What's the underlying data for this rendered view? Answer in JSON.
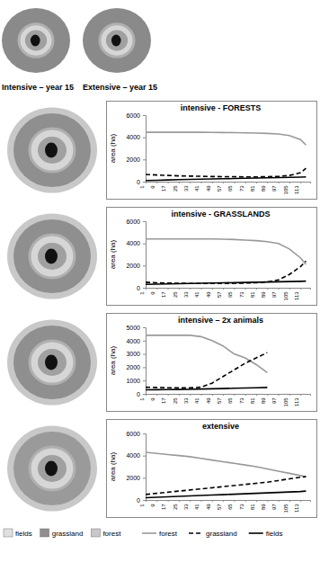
{
  "map_labels": [
    "Intensive – year 15",
    "Extensive – year 15"
  ],
  "map_legend": [
    "fields",
    "grassland",
    "forest"
  ],
  "chart_data": [
    {
      "type": "line",
      "title": "intensive - FORESTS",
      "y_label": "area (ha)",
      "x": [
        1,
        9,
        17,
        25,
        33,
        41,
        49,
        57,
        65,
        73,
        81,
        89,
        97,
        105,
        113,
        117
      ],
      "xlim": [
        1,
        120
      ],
      "xticks": [
        1,
        9,
        17,
        25,
        33,
        41,
        49,
        57,
        65,
        73,
        81,
        89,
        97,
        105,
        113
      ],
      "ylim": [
        0,
        6000
      ],
      "yticks": [
        0,
        2000,
        4000,
        6000
      ],
      "grid": false,
      "series": [
        {
          "name": "forest",
          "color": "#999999",
          "line_style": "solid",
          "values": [
            4450,
            4450,
            4450,
            4450,
            4450,
            4450,
            4440,
            4430,
            4420,
            4400,
            4380,
            4350,
            4300,
            4150,
            3800,
            3300
          ]
        },
        {
          "name": "grassland",
          "color": "#000000",
          "line_style": "dashed",
          "values": [
            650,
            600,
            560,
            520,
            500,
            480,
            460,
            450,
            440,
            430,
            430,
            440,
            470,
            560,
            800,
            1200
          ]
        },
        {
          "name": "fields",
          "color": "#000000",
          "line_style": "solid",
          "values": [
            100,
            120,
            150,
            180,
            200,
            220,
            240,
            260,
            280,
            300,
            320,
            340,
            360,
            380,
            400,
            420
          ]
        }
      ]
    },
    {
      "type": "line",
      "title": "intensive - GRASSLANDS",
      "y_label": "area (ha)",
      "x": [
        1,
        9,
        17,
        25,
        33,
        41,
        49,
        57,
        65,
        73,
        81,
        89,
        97,
        105,
        113,
        117
      ],
      "xlim": [
        1,
        120
      ],
      "xticks": [
        1,
        9,
        17,
        25,
        33,
        41,
        49,
        57,
        65,
        73,
        81,
        89,
        97,
        105,
        113
      ],
      "ylim": [
        0,
        6000
      ],
      "yticks": [
        0,
        2000,
        4000,
        6000
      ],
      "grid": false,
      "series": [
        {
          "name": "forest",
          "color": "#999999",
          "line_style": "solid",
          "values": [
            4400,
            4400,
            4400,
            4400,
            4400,
            4400,
            4400,
            4380,
            4350,
            4300,
            4250,
            4150,
            4000,
            3500,
            2700,
            2100
          ]
        },
        {
          "name": "grassland",
          "color": "#000000",
          "line_style": "dashed",
          "values": [
            500,
            450,
            420,
            400,
            390,
            380,
            380,
            390,
            400,
            420,
            450,
            520,
            700,
            1200,
            1900,
            2400
          ]
        },
        {
          "name": "fields",
          "color": "#000000",
          "line_style": "solid",
          "values": [
            300,
            320,
            340,
            360,
            380,
            400,
            420,
            440,
            460,
            480,
            500,
            520,
            540,
            560,
            580,
            600
          ]
        }
      ]
    },
    {
      "type": "line",
      "title": "intensive – 2x animals",
      "y_label": "area (ha)",
      "x": [
        1,
        9,
        17,
        25,
        33,
        41,
        49,
        57,
        65,
        73,
        81,
        89,
        97,
        105,
        113,
        117
      ],
      "xlim": [
        1,
        120
      ],
      "xticks": [
        1,
        9,
        17,
        25,
        33,
        41,
        49,
        57,
        65,
        73,
        81,
        89,
        97,
        105,
        113
      ],
      "ylim": [
        0,
        5000
      ],
      "yticks": [
        0,
        1000,
        2000,
        3000,
        4000,
        5000
      ],
      "grid": false,
      "series": [
        {
          "name": "forest",
          "color": "#999999",
          "line_style": "solid",
          "values": [
            4400,
            4400,
            4400,
            4400,
            4400,
            4300,
            4000,
            3600,
            3000,
            2700,
            2200,
            1600,
            null,
            null,
            null,
            null
          ]
        },
        {
          "name": "grassland",
          "color": "#000000",
          "line_style": "dashed",
          "values": [
            500,
            480,
            460,
            450,
            450,
            500,
            800,
            1300,
            1800,
            2300,
            2700,
            3100,
            null,
            null,
            null,
            null
          ]
        },
        {
          "name": "fields",
          "color": "#000000",
          "line_style": "solid",
          "values": [
            300,
            310,
            320,
            330,
            340,
            360,
            380,
            400,
            420,
            440,
            460,
            480,
            null,
            null,
            null,
            null
          ]
        }
      ]
    },
    {
      "type": "line",
      "title": "extensive",
      "y_label": "area (ha)",
      "x": [
        1,
        9,
        17,
        25,
        33,
        41,
        49,
        57,
        65,
        73,
        81,
        89,
        97,
        105,
        113,
        117
      ],
      "xlim": [
        1,
        120
      ],
      "xticks": [
        1,
        9,
        17,
        25,
        33,
        41,
        49,
        57,
        65,
        73,
        81,
        89,
        97,
        105,
        113
      ],
      "ylim": [
        0,
        6000
      ],
      "yticks": [
        0,
        2000,
        4000,
        6000
      ],
      "grid": false,
      "legend": "bottom",
      "series": [
        {
          "name": "forest",
          "color": "#999999",
          "line_style": "solid",
          "values": [
            4300,
            4200,
            4100,
            4000,
            3900,
            3750,
            3600,
            3450,
            3300,
            3150,
            3000,
            2800,
            2600,
            2400,
            2200,
            2100
          ]
        },
        {
          "name": "grassland",
          "color": "#000000",
          "line_style": "dashed",
          "values": [
            500,
            600,
            700,
            800,
            900,
            1000,
            1100,
            1200,
            1300,
            1400,
            1500,
            1600,
            1750,
            1900,
            2050,
            2100
          ]
        },
        {
          "name": "fields",
          "color": "#000000",
          "line_style": "solid",
          "values": [
            200,
            240,
            280,
            320,
            360,
            400,
            440,
            480,
            520,
            560,
            600,
            640,
            680,
            720,
            760,
            800
          ]
        }
      ]
    }
  ]
}
